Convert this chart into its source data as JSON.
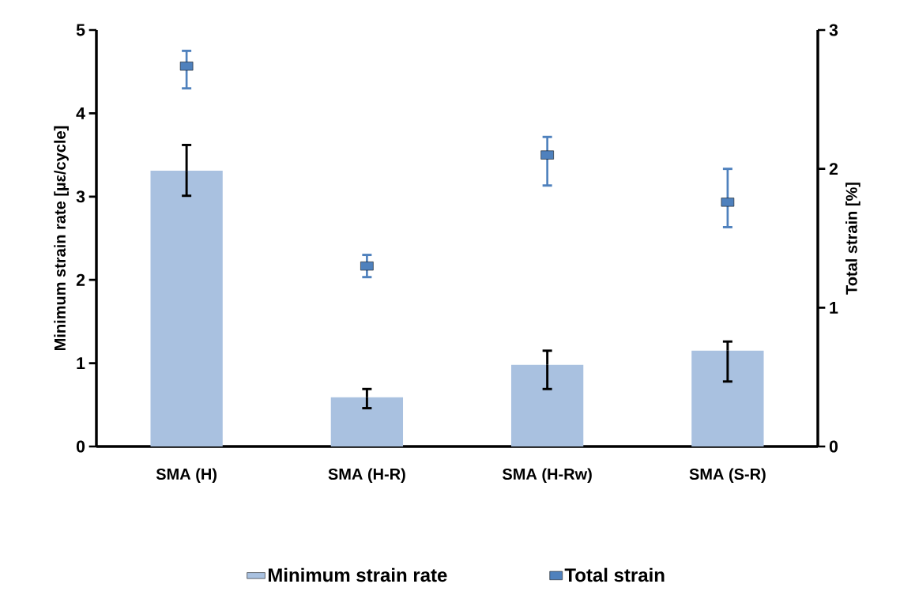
{
  "chart_data": {
    "type": "bar",
    "categories": [
      "SMA (H)",
      "SMA (H-R)",
      "SMA (H-Rw)",
      "SMA (S-R)"
    ],
    "ylabel": "Minimum strain rate [µε/cycle]",
    "y2label": "Total strain [%]",
    "ylim": [
      0,
      5
    ],
    "yticks": [
      0,
      1,
      2,
      3,
      4,
      5
    ],
    "y2lim": [
      0,
      3
    ],
    "y2ticks": [
      0,
      1,
      2,
      3
    ],
    "legend": "bottom",
    "series": [
      {
        "name": "Minimum strain rate",
        "color": "#a9c1e0",
        "values": [
          3.31,
          0.59,
          0.98,
          1.15
        ],
        "errors": [
          [
            3.01,
            3.62
          ],
          [
            0.46,
            0.69
          ],
          [
            0.69,
            1.15
          ],
          [
            0.78,
            1.26
          ]
        ]
      },
      {
        "name": "Total strain",
        "type": "scatter",
        "marker": "square",
        "axis": "y2",
        "color": "#4f81bd",
        "values": [
          2.74,
          1.3,
          2.1,
          1.76
        ],
        "errors": [
          [
            2.58,
            2.85
          ],
          [
            1.22,
            1.38
          ],
          [
            1.88,
            2.23
          ],
          [
            1.58,
            2.0
          ]
        ]
      }
    ]
  }
}
